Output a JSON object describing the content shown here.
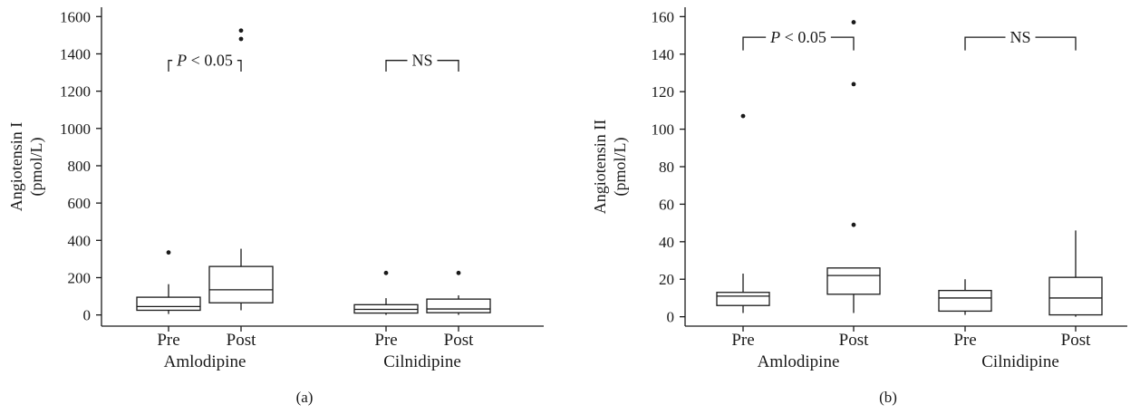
{
  "chart_data": [
    {
      "type": "box",
      "panel_label": "(a)",
      "ylabel": "Angiotensin I",
      "ylabel_unit": "(pmol/L)",
      "ylim": [
        -60,
        1650
      ],
      "yticks": [
        0,
        200,
        400,
        600,
        800,
        1000,
        1200,
        1400,
        1600
      ],
      "categories": [
        "Pre",
        "Post",
        "Pre",
        "Post"
      ],
      "groups": [
        {
          "label": "Amlodipine",
          "members": [
            0,
            1
          ]
        },
        {
          "label": "Cilnidipine",
          "members": [
            2,
            3
          ]
        }
      ],
      "boxes": [
        {
          "whisker_low": 5,
          "q1": 25,
          "median": 45,
          "q3": 95,
          "whisker_high": 165,
          "outliers": [
            335
          ]
        },
        {
          "whisker_low": 25,
          "q1": 65,
          "median": 135,
          "q3": 260,
          "whisker_high": 355,
          "outliers": [
            1480,
            1525
          ]
        },
        {
          "whisker_low": 0,
          "q1": 10,
          "median": 30,
          "q3": 55,
          "whisker_high": 90,
          "outliers": [
            225
          ]
        },
        {
          "whisker_low": 0,
          "q1": 12,
          "median": 32,
          "q3": 85,
          "whisker_high": 105,
          "outliers": [
            225
          ]
        }
      ],
      "annotations": [
        {
          "from": 0,
          "to": 1,
          "text_italic": "P",
          "text_rest": " < 0.05",
          "y": 1365,
          "drop_to": 1305
        },
        {
          "from": 2,
          "to": 3,
          "text_italic": "",
          "text_rest": "NS",
          "y": 1365,
          "drop_to": 1305
        }
      ]
    },
    {
      "type": "box",
      "panel_label": "(b)",
      "ylabel": "Angiotensin II",
      "ylabel_unit": "(pmol/L)",
      "ylim": [
        -5,
        165
      ],
      "yticks": [
        0,
        20,
        40,
        60,
        80,
        100,
        120,
        140,
        160
      ],
      "categories": [
        "Pre",
        "Post",
        "Pre",
        "Post"
      ],
      "groups": [
        {
          "label": "Amlodipine",
          "members": [
            0,
            1
          ]
        },
        {
          "label": "Cilnidipine",
          "members": [
            2,
            3
          ]
        }
      ],
      "boxes": [
        {
          "whisker_low": 2,
          "q1": 6,
          "median": 11,
          "q3": 13,
          "whisker_high": 23,
          "outliers": [
            107
          ]
        },
        {
          "whisker_low": 2,
          "q1": 12,
          "median": 22,
          "q3": 26,
          "whisker_high": 26,
          "outliers": [
            49,
            124,
            157
          ]
        },
        {
          "whisker_low": 1,
          "q1": 3,
          "median": 10,
          "q3": 14,
          "whisker_high": 20,
          "outliers": []
        },
        {
          "whisker_low": 0,
          "q1": 1,
          "median": 10,
          "q3": 21,
          "whisker_high": 46,
          "outliers": []
        }
      ],
      "annotations": [
        {
          "from": 0,
          "to": 1,
          "text_italic": "P",
          "text_rest": " < 0.05",
          "y": 149,
          "drop_to": 142
        },
        {
          "from": 2,
          "to": 3,
          "text_italic": "",
          "text_rest": "NS",
          "y": 149,
          "drop_to": 142
        }
      ]
    }
  ]
}
